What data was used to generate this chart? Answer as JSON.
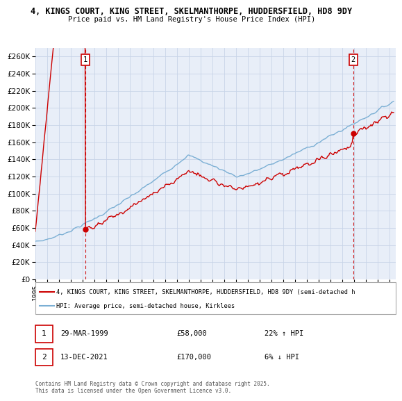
{
  "title_line1": "4, KINGS COURT, KING STREET, SKELMANTHORPE, HUDDERSFIELD, HD8 9DY",
  "title_line2": "Price paid vs. HM Land Registry's House Price Index (HPI)",
  "background_color": "#ffffff",
  "grid_color": "#c8d4e8",
  "plot_bg": "#e8eef8",
  "red_color": "#cc0000",
  "blue_color": "#7bafd4",
  "ylim_min": 0,
  "ylim_max": 270000,
  "xlim_min": 1995,
  "xlim_max": 2025.5,
  "ytick_step": 20000,
  "sale1_year": 1999.24,
  "sale1_price": 58000,
  "sale2_year": 2021.95,
  "sale2_price": 170000,
  "annotation1_label": "1",
  "annotation1_date": "29-MAR-1999",
  "annotation1_price": "£58,000",
  "annotation1_hpi": "22% ↑ HPI",
  "annotation2_label": "2",
  "annotation2_date": "13-DEC-2021",
  "annotation2_price": "£170,000",
  "annotation2_hpi": "6% ↓ HPI",
  "legend_line1": "4, KINGS COURT, KING STREET, SKELMANTHORPE, HUDDERSFIELD, HD8 9DY (semi-detached h",
  "legend_line2": "HPI: Average price, semi-detached house, Kirklees",
  "footer": "Contains HM Land Registry data © Crown copyright and database right 2025.\nThis data is licensed under the Open Government Licence v3.0."
}
